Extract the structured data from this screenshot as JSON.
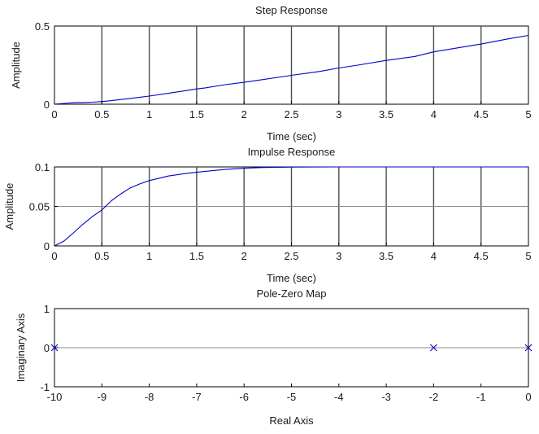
{
  "chart_data": [
    {
      "type": "line",
      "title": "Step Response",
      "xlabel": "Time (sec)",
      "ylabel": "Amplitude",
      "xlim": [
        0,
        5
      ],
      "ylim": [
        0,
        0.5
      ],
      "xticks": [
        0,
        0.5,
        1,
        1.5,
        2,
        2.5,
        3,
        3.5,
        4,
        4.5,
        5
      ],
      "xtick_labels": [
        "0",
        "0.5",
        "1",
        "1.5",
        "2",
        "2.5",
        "3",
        "3.5",
        "4",
        "4.5",
        "5"
      ],
      "yticks": [
        0,
        0.5
      ],
      "ytick_labels": [
        "0",
        "0.5"
      ],
      "grid_x": true,
      "grid_y": false,
      "color": "#0000cc",
      "series": [
        {
          "x": [
            0,
            0.1,
            0.2,
            0.3,
            0.4,
            0.5,
            0.6,
            0.7,
            0.8,
            0.9,
            1.0,
            1.2,
            1.4,
            1.5,
            1.6,
            1.8,
            2.0,
            2.2,
            2.5,
            2.8,
            3.0,
            3.2,
            3.5,
            3.8,
            4.0,
            4.2,
            4.5,
            4.8,
            5.0
          ],
          "y": [
            0,
            0.005,
            0.01,
            0.011,
            0.013,
            0.017,
            0.023,
            0.03,
            0.037,
            0.045,
            0.052,
            0.07,
            0.088,
            0.098,
            0.105,
            0.125,
            0.14,
            0.158,
            0.185,
            0.21,
            0.232,
            0.25,
            0.28,
            0.305,
            0.335,
            0.355,
            0.385,
            0.42,
            0.44
          ]
        }
      ]
    },
    {
      "type": "line",
      "title": "Impulse Response",
      "xlabel": "Time (sec)",
      "ylabel": "Amplitude",
      "xlim": [
        0,
        5
      ],
      "ylim": [
        0,
        0.1
      ],
      "xticks": [
        0,
        0.5,
        1,
        1.5,
        2,
        2.5,
        3,
        3.5,
        4,
        4.5,
        5
      ],
      "xtick_labels": [
        "0",
        "0.5",
        "1",
        "1.5",
        "2",
        "2.5",
        "3",
        "3.5",
        "4",
        "4.5",
        "5"
      ],
      "yticks": [
        0,
        0.05,
        0.1
      ],
      "ytick_labels": [
        "0",
        "0.05",
        "0.1"
      ],
      "grid_x": true,
      "grid_y": true,
      "color": "#0000cc",
      "series": [
        {
          "x": [
            0,
            0.1,
            0.2,
            0.3,
            0.4,
            0.5,
            0.6,
            0.7,
            0.8,
            0.9,
            1.0,
            1.2,
            1.4,
            1.6,
            1.8,
            2.0,
            2.2,
            2.5,
            3.0,
            3.5,
            4.0,
            4.5,
            5.0
          ],
          "y": [
            0,
            0.0062,
            0.0165,
            0.0274,
            0.0372,
            0.0455,
            0.0572,
            0.0659,
            0.0735,
            0.0785,
            0.0827,
            0.0885,
            0.092,
            0.0945,
            0.0968,
            0.0983,
            0.0993,
            0.0998,
            0.1,
            0.1,
            0.1,
            0.1,
            0.1
          ]
        }
      ]
    },
    {
      "type": "scatter",
      "title": "Pole-Zero Map",
      "xlabel": "Real Axis",
      "ylabel": "Imaginary Axis",
      "xlim": [
        -10,
        0
      ],
      "ylim": [
        -1,
        1
      ],
      "xticks": [
        -10,
        -9,
        -8,
        -7,
        -6,
        -5,
        -4,
        -3,
        -2,
        -1,
        0
      ],
      "xtick_labels": [
        "-10",
        "-9",
        "-8",
        "-7",
        "-6",
        "-5",
        "-4",
        "-3",
        "-2",
        "-1",
        "0"
      ],
      "yticks": [
        -1,
        0,
        1
      ],
      "ytick_labels": [
        "-1",
        "0",
        "1"
      ],
      "grid_x": false,
      "grid_y": false,
      "color": "#1010cc",
      "marker": "x",
      "series": [
        {
          "x": [
            -10,
            -2,
            0
          ],
          "y": [
            0,
            0,
            0
          ]
        }
      ]
    }
  ]
}
